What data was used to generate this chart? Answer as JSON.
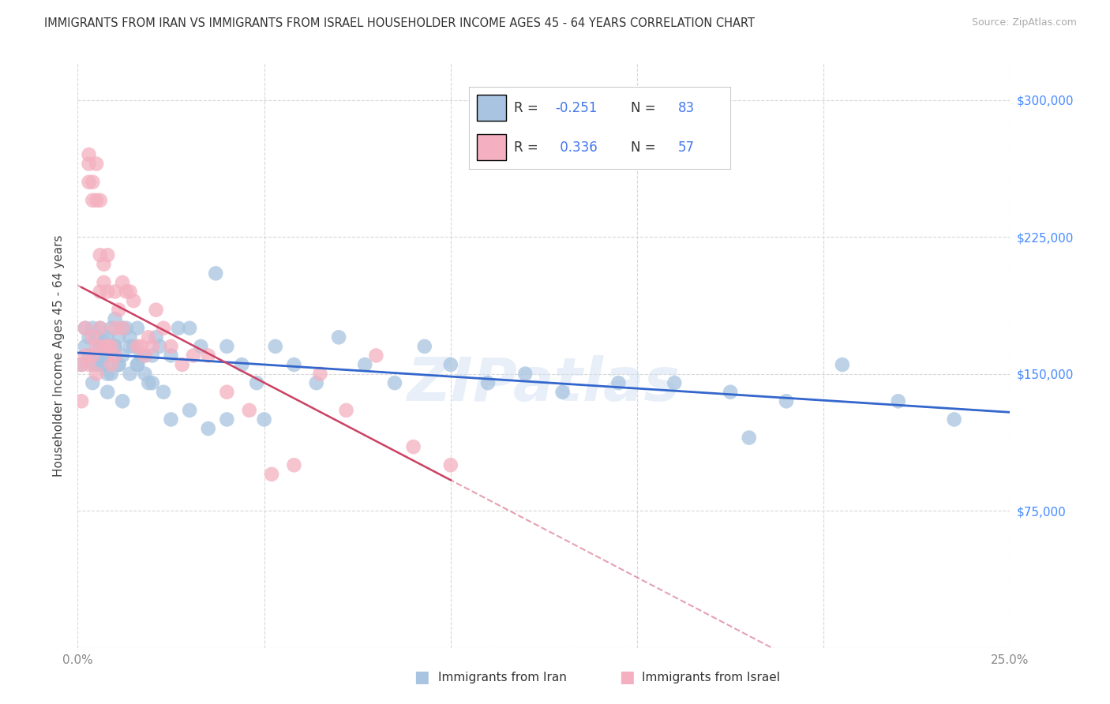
{
  "title": "IMMIGRANTS FROM IRAN VS IMMIGRANTS FROM ISRAEL HOUSEHOLDER INCOME AGES 45 - 64 YEARS CORRELATION CHART",
  "source": "Source: ZipAtlas.com",
  "ylabel": "Householder Income Ages 45 - 64 years",
  "xlim": [
    0.0,
    0.25
  ],
  "ylim": [
    0,
    320000
  ],
  "xticks": [
    0.0,
    0.05,
    0.1,
    0.15,
    0.2,
    0.25
  ],
  "xticklabels": [
    "0.0%",
    "",
    "",
    "",
    "",
    "25.0%"
  ],
  "yticks": [
    0,
    75000,
    150000,
    225000,
    300000
  ],
  "yticklabels": [
    "",
    "$75,000",
    "$150,000",
    "$225,000",
    "$300,000"
  ],
  "iran_color": "#a8c4e0",
  "israel_color": "#f4b0c0",
  "iran_line_color": "#3366cc",
  "israel_line_color": "#cc4466",
  "iran_R": -0.251,
  "iran_N": 83,
  "israel_R": 0.336,
  "israel_N": 57,
  "watermark": "ZIPatlas",
  "iran_x": [
    0.001,
    0.002,
    0.002,
    0.003,
    0.003,
    0.004,
    0.004,
    0.005,
    0.005,
    0.006,
    0.006,
    0.006,
    0.007,
    0.007,
    0.008,
    0.008,
    0.008,
    0.009,
    0.009,
    0.01,
    0.01,
    0.011,
    0.011,
    0.012,
    0.012,
    0.013,
    0.014,
    0.014,
    0.015,
    0.016,
    0.016,
    0.017,
    0.018,
    0.019,
    0.02,
    0.021,
    0.022,
    0.023,
    0.025,
    0.027,
    0.03,
    0.033,
    0.037,
    0.04,
    0.044,
    0.048,
    0.053,
    0.058,
    0.064,
    0.07,
    0.077,
    0.085,
    0.093,
    0.1,
    0.11,
    0.12,
    0.13,
    0.145,
    0.16,
    0.175,
    0.19,
    0.205,
    0.22,
    0.235,
    0.004,
    0.005,
    0.006,
    0.007,
    0.008,
    0.009,
    0.01,
    0.011,
    0.012,
    0.014,
    0.016,
    0.018,
    0.02,
    0.025,
    0.03,
    0.035,
    0.04,
    0.05,
    0.18
  ],
  "iran_y": [
    155000,
    165000,
    175000,
    160000,
    170000,
    155000,
    175000,
    160000,
    170000,
    165000,
    155000,
    175000,
    168000,
    158000,
    170000,
    160000,
    150000,
    175000,
    165000,
    180000,
    165000,
    170000,
    155000,
    175000,
    160000,
    175000,
    170000,
    150000,
    165000,
    175000,
    155000,
    160000,
    150000,
    145000,
    160000,
    170000,
    165000,
    140000,
    160000,
    175000,
    175000,
    165000,
    205000,
    165000,
    155000,
    145000,
    165000,
    155000,
    145000,
    170000,
    155000,
    145000,
    165000,
    155000,
    145000,
    150000,
    140000,
    145000,
    145000,
    140000,
    135000,
    155000,
    135000,
    125000,
    145000,
    155000,
    165000,
    155000,
    140000,
    150000,
    165000,
    155000,
    135000,
    165000,
    155000,
    160000,
    145000,
    125000,
    130000,
    120000,
    125000,
    125000,
    115000
  ],
  "israel_x": [
    0.001,
    0.001,
    0.002,
    0.002,
    0.003,
    0.003,
    0.003,
    0.004,
    0.004,
    0.004,
    0.005,
    0.005,
    0.005,
    0.006,
    0.006,
    0.006,
    0.007,
    0.007,
    0.008,
    0.008,
    0.009,
    0.009,
    0.01,
    0.01,
    0.011,
    0.012,
    0.012,
    0.013,
    0.014,
    0.015,
    0.016,
    0.017,
    0.018,
    0.019,
    0.02,
    0.021,
    0.023,
    0.025,
    0.028,
    0.031,
    0.035,
    0.04,
    0.046,
    0.052,
    0.058,
    0.065,
    0.072,
    0.08,
    0.09,
    0.1,
    0.003,
    0.004,
    0.005,
    0.006,
    0.007,
    0.008,
    0.01
  ],
  "israel_y": [
    135000,
    155000,
    160000,
    175000,
    255000,
    265000,
    270000,
    255000,
    245000,
    160000,
    245000,
    265000,
    150000,
    245000,
    215000,
    195000,
    210000,
    200000,
    215000,
    195000,
    165000,
    155000,
    195000,
    175000,
    185000,
    200000,
    175000,
    195000,
    195000,
    190000,
    165000,
    165000,
    160000,
    170000,
    165000,
    185000,
    175000,
    165000,
    155000,
    160000,
    160000,
    140000,
    130000,
    95000,
    100000,
    150000,
    130000,
    160000,
    110000,
    100000,
    155000,
    170000,
    165000,
    175000,
    165000,
    165000,
    160000
  ]
}
